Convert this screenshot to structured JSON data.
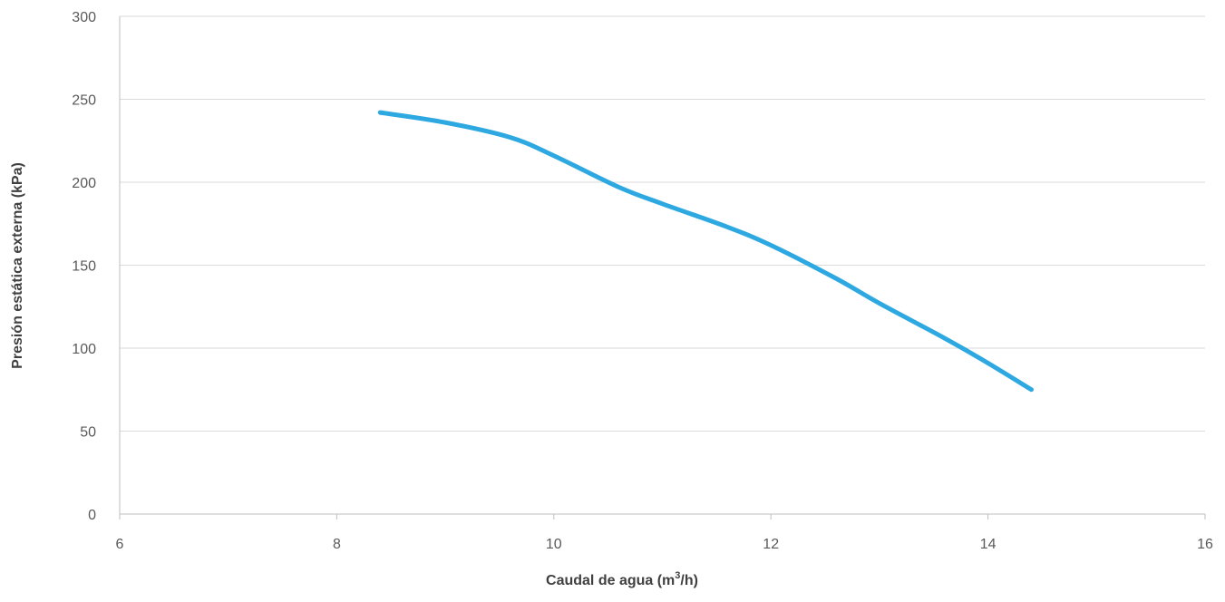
{
  "chart_data": {
    "type": "line",
    "xlabel_main": "Caudal de agua (m",
    "xlabel_sup": "3",
    "xlabel_tail": "/h)",
    "ylabel": "Presión estática externa (kPa)",
    "xlim": [
      6,
      16
    ],
    "ylim": [
      0,
      300
    ],
    "x_ticks": [
      6,
      8,
      10,
      12,
      14,
      16
    ],
    "y_ticks": [
      0,
      50,
      100,
      150,
      200,
      250,
      300
    ],
    "grid": "horizontal",
    "series": [
      {
        "color": "#2ea8e0",
        "x": [
          8.4,
          9.0,
          9.6,
          10.0,
          10.6,
          11.0,
          11.6,
          12.0,
          12.6,
          13.0,
          13.6,
          14.0,
          14.4
        ],
        "y": [
          242,
          236,
          227,
          216,
          197,
          187,
          173,
          162,
          142,
          127,
          106,
          91,
          75
        ]
      }
    ]
  }
}
